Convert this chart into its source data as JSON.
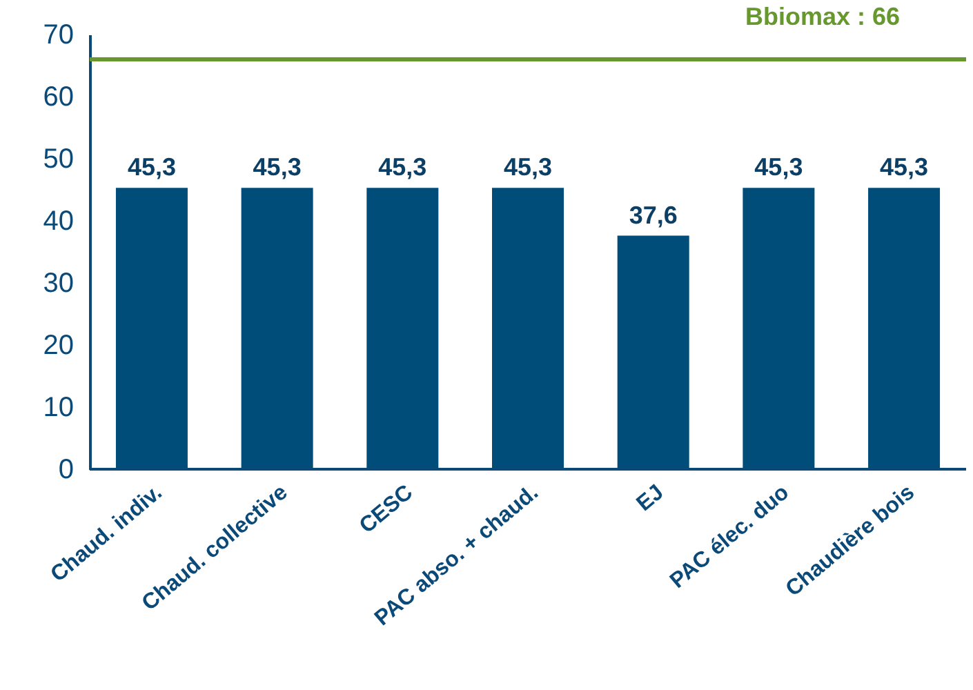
{
  "chart_data": {
    "type": "bar",
    "categories": [
      "Chaud. indiv.",
      "Chaud. collective",
      "CESC",
      "PAC abso. + chaud.",
      "EJ",
      "PAC élec. duo",
      "Chaudière bois"
    ],
    "values": [
      45.3,
      45.3,
      45.3,
      45.3,
      37.6,
      45.3,
      45.3
    ],
    "value_labels": [
      "45,3",
      "45,3",
      "45,3",
      "45,3",
      "37,6",
      "45,3",
      "45,3"
    ],
    "color": "#004d7a",
    "ylim": [
      0,
      70
    ],
    "yticks": [
      0,
      10,
      20,
      30,
      40,
      50,
      60,
      70
    ],
    "grid": false,
    "ref_lines": [
      {
        "axis": "y",
        "value": 66,
        "label": "Bbiomax : 66",
        "color": "#66982e"
      }
    ]
  }
}
